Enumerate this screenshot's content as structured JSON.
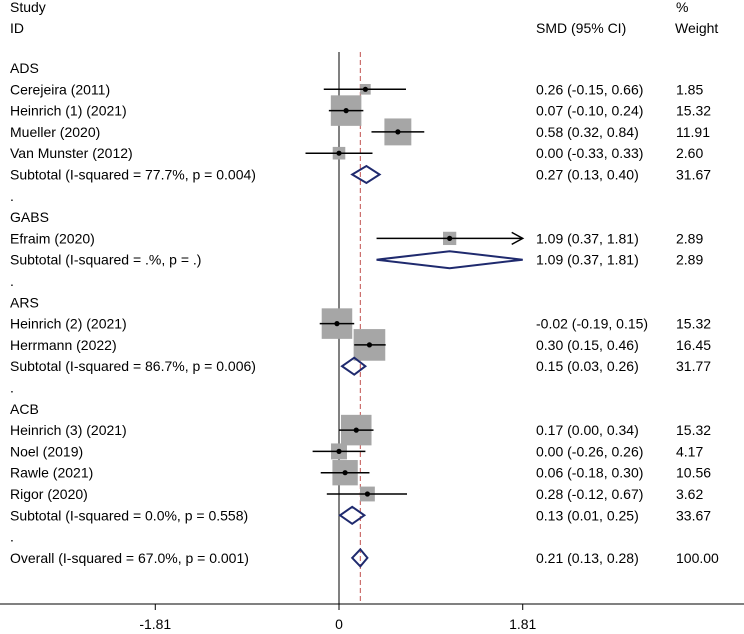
{
  "chart_data": {
    "type": "forest",
    "headers": {
      "study_line1": "Study",
      "study_line2": "ID",
      "effect": "SMD (95% CI)",
      "weight_line1": "%",
      "weight_line2": "Weight"
    },
    "null_value": 0,
    "overall_effect": 0.21,
    "x_ticks": [
      "-1.81",
      "0",
      "1.81"
    ],
    "rows": [
      {
        "kind": "group",
        "label": "ADS"
      },
      {
        "kind": "study",
        "label": "Cerejeira (2011)",
        "est": 0.26,
        "lo": -0.15,
        "hi": 0.66,
        "ci": "0.26 (-0.15, 0.66)",
        "weight": 1.85,
        "weight_text": "1.85"
      },
      {
        "kind": "study",
        "label": "Heinrich (1) (2021)",
        "est": 0.07,
        "lo": -0.1,
        "hi": 0.24,
        "ci": "0.07 (-0.10, 0.24)",
        "weight": 15.32,
        "weight_text": "15.32"
      },
      {
        "kind": "study",
        "label": "Mueller (2020)",
        "est": 0.58,
        "lo": 0.32,
        "hi": 0.84,
        "ci": "0.58 (0.32, 0.84)",
        "weight": 11.91,
        "weight_text": "11.91"
      },
      {
        "kind": "study",
        "label": "Van Munster (2012)",
        "est": 0.0,
        "lo": -0.33,
        "hi": 0.33,
        "ci": "0.00 (-0.33, 0.33)",
        "weight": 2.6,
        "weight_text": "2.60"
      },
      {
        "kind": "subtotal",
        "label": "Subtotal  (I-squared = 77.7%, p = 0.004)",
        "est": 0.27,
        "lo": 0.13,
        "hi": 0.4,
        "ci": "0.27 (0.13, 0.40)",
        "weight_text": "31.67"
      },
      {
        "kind": "dot",
        "label": "."
      },
      {
        "kind": "group",
        "label": "GABS"
      },
      {
        "kind": "study",
        "label": "Efraim (2020)",
        "est": 1.09,
        "lo": 0.37,
        "hi": 1.81,
        "ci": "1.09 (0.37, 1.81)",
        "weight": 2.89,
        "weight_text": "2.89",
        "arrow": true
      },
      {
        "kind": "subtotal",
        "label": "Subtotal  (I-squared = .%, p = .)",
        "est": 1.09,
        "lo": 0.37,
        "hi": 1.81,
        "ci": "1.09 (0.37, 1.81)",
        "weight_text": "2.89"
      },
      {
        "kind": "dot",
        "label": "."
      },
      {
        "kind": "group",
        "label": "ARS"
      },
      {
        "kind": "study",
        "label": "Heinrich (2) (2021)",
        "est": -0.02,
        "lo": -0.19,
        "hi": 0.15,
        "ci": "-0.02 (-0.19, 0.15)",
        "weight": 15.32,
        "weight_text": "15.32"
      },
      {
        "kind": "study",
        "label": "Herrmann (2022)",
        "est": 0.3,
        "lo": 0.15,
        "hi": 0.46,
        "ci": "0.30 (0.15, 0.46)",
        "weight": 16.45,
        "weight_text": "16.45"
      },
      {
        "kind": "subtotal",
        "label": "Subtotal  (I-squared = 86.7%, p = 0.006)",
        "est": 0.15,
        "lo": 0.03,
        "hi": 0.26,
        "ci": "0.15 (0.03, 0.26)",
        "weight_text": "31.77"
      },
      {
        "kind": "dot",
        "label": "."
      },
      {
        "kind": "group",
        "label": "ACB"
      },
      {
        "kind": "study",
        "label": "Heinrich (3) (2021)",
        "est": 0.17,
        "lo": 0.0,
        "hi": 0.34,
        "ci": "0.17 (0.00, 0.34)",
        "weight": 15.32,
        "weight_text": "15.32"
      },
      {
        "kind": "study",
        "label": "Noel (2019)",
        "est": 0.0,
        "lo": -0.26,
        "hi": 0.26,
        "ci": "0.00 (-0.26, 0.26)",
        "weight": 4.17,
        "weight_text": "4.17"
      },
      {
        "kind": "study",
        "label": "Rawle (2021)",
        "est": 0.06,
        "lo": -0.18,
        "hi": 0.3,
        "ci": "0.06 (-0.18, 0.30)",
        "weight": 10.56,
        "weight_text": "10.56"
      },
      {
        "kind": "study",
        "label": "Rigor (2020)",
        "est": 0.28,
        "lo": -0.12,
        "hi": 0.67,
        "ci": "0.28 (-0.12, 0.67)",
        "weight": 3.62,
        "weight_text": "3.62"
      },
      {
        "kind": "subtotal",
        "label": "Subtotal  (I-squared = 0.0%, p = 0.558)",
        "est": 0.13,
        "lo": 0.01,
        "hi": 0.25,
        "ci": "0.13 (0.01, 0.25)",
        "weight_text": "33.67"
      },
      {
        "kind": "dot",
        "label": "."
      },
      {
        "kind": "overall",
        "label": "Overall  (I-squared = 67.0%, p = 0.001)",
        "est": 0.21,
        "lo": 0.13,
        "hi": 0.28,
        "ci": "0.21 (0.13, 0.28)",
        "weight_text": "100.00"
      }
    ],
    "colors": {
      "weight_box": "#a6a6a6",
      "diamond": "#1f2a6e",
      "overall_line": "#c0504d",
      "line": "#000000"
    }
  }
}
